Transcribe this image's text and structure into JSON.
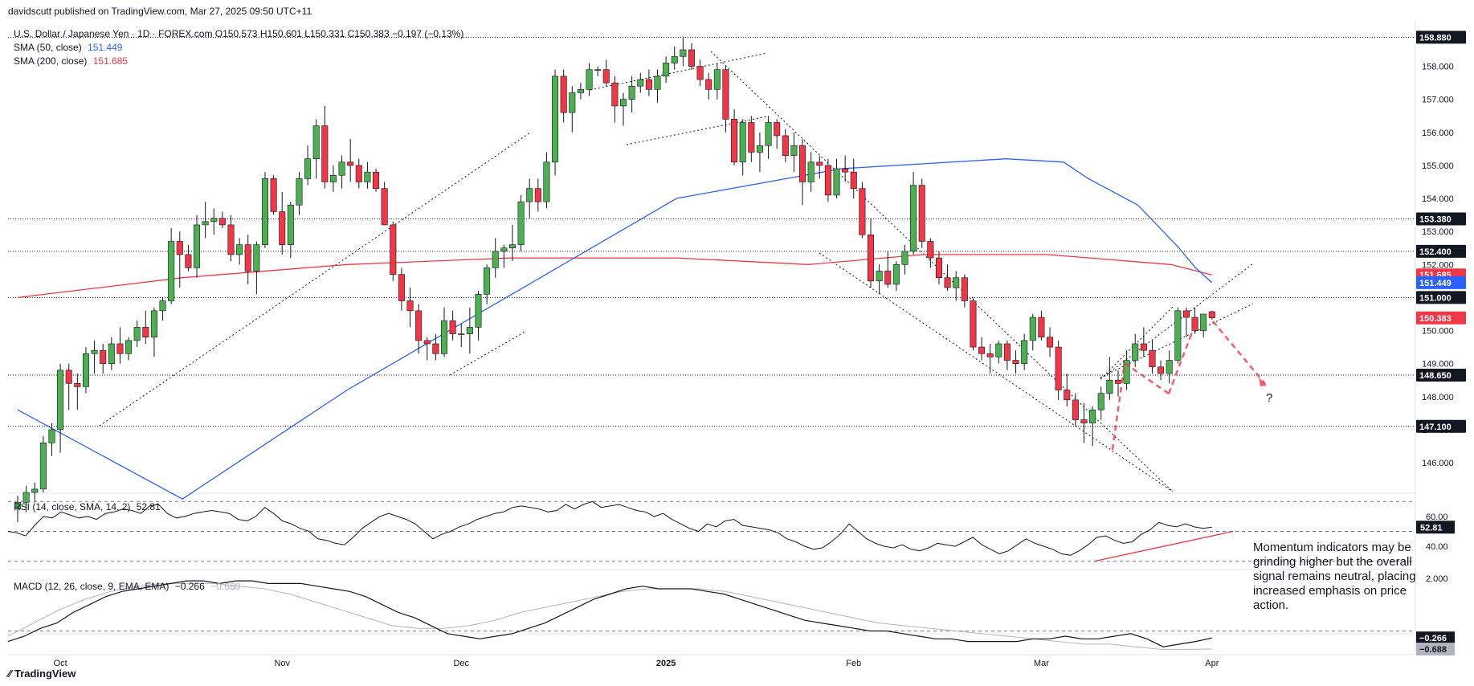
{
  "header": {
    "publisher": "davidscutt published on TradingView.com, Mar 27, 2025 09:50 UTC+11",
    "symbol_line": "U.S. Dollar / Japanese Yen · 1D · FOREX.com  O150.573  H150.601  L150.331  C150.383  −0.197 (−0.13%)",
    "sma50_label": "SMA (50, close)",
    "sma50_value": "151.449",
    "sma200_label": "SMA (200, close)",
    "sma200_value": "151.685",
    "rsi_label": "RSI (14, close, SMA, 14, 2)",
    "rsi_value": "52.81",
    "macd_label": "MACD (12, 26, close, 9, EMA, EMA)",
    "macd_value": "−0.266",
    "macd_signal_value": "−0.688"
  },
  "footer": {
    "brand": "TradingView"
  },
  "annotation": "Momentum indicators may be grinding higher but the overall signal remains neutral, placing increased emphasis on price action.",
  "question_mark": "?",
  "colors": {
    "up": "#4caf50",
    "down": "#f23645",
    "sma50": "#2962ff",
    "sma200": "#f23645",
    "rsi": "#131722",
    "macd": "#131722",
    "signal": "#b2b5be",
    "tag": "#131722"
  },
  "chart_data": {
    "type": "candlestick",
    "title": "U.S. Dollar / Japanese Yen",
    "timeframe": "1D",
    "x_labels": [
      "Oct",
      "Nov",
      "Dec",
      "2025",
      "Feb",
      "Mar",
      "Apr"
    ],
    "y_ticks": [
      146,
      147,
      148,
      149,
      150,
      151,
      152,
      153,
      154,
      155,
      156,
      157,
      158
    ],
    "ylim": [
      145.1,
      159.4
    ],
    "horizontal_levels": [
      158.88,
      153.38,
      152.4,
      151.0,
      148.65,
      147.1
    ],
    "price_tags": [
      {
        "label": "158.880",
        "value": 158.88,
        "color": "#131722"
      },
      {
        "label": "153.380",
        "value": 153.38,
        "color": "#131722"
      },
      {
        "label": "152.400",
        "value": 152.4,
        "color": "#131722"
      },
      {
        "label": "151.685",
        "value": 151.685,
        "color": "#f23645"
      },
      {
        "label": "151.449",
        "value": 151.449,
        "color": "#2962ff"
      },
      {
        "label": "151.000",
        "value": 151.0,
        "color": "#131722"
      },
      {
        "label": "150.383",
        "value": 150.383,
        "color": "#f23645"
      },
      {
        "label": "148.650",
        "value": 148.65,
        "color": "#131722"
      },
      {
        "label": "147.100",
        "value": 147.1,
        "color": "#131722"
      }
    ],
    "candles": [
      [
        144.6,
        145.0,
        144.2,
        144.8
      ],
      [
        144.8,
        145.3,
        144.5,
        145.1
      ],
      [
        145.1,
        145.4,
        144.8,
        145.2
      ],
      [
        145.2,
        146.8,
        145.1,
        146.6
      ],
      [
        146.6,
        147.2,
        146.2,
        147.0
      ],
      [
        147.0,
        149.0,
        146.3,
        148.8
      ],
      [
        148.8,
        149.0,
        147.6,
        148.4
      ],
      [
        148.4,
        148.7,
        147.6,
        148.3
      ],
      [
        148.3,
        149.5,
        148.1,
        149.3
      ],
      [
        149.3,
        149.7,
        148.7,
        149.4
      ],
      [
        149.4,
        149.6,
        148.7,
        149.0
      ],
      [
        149.0,
        149.8,
        148.8,
        149.6
      ],
      [
        149.6,
        150.1,
        149.0,
        149.3
      ],
      [
        149.3,
        149.8,
        149.1,
        149.7
      ],
      [
        149.7,
        150.3,
        149.5,
        150.1
      ],
      [
        150.1,
        150.6,
        149.6,
        149.8
      ],
      [
        149.8,
        150.7,
        149.2,
        150.6
      ],
      [
        150.6,
        151.0,
        150.3,
        150.9
      ],
      [
        150.9,
        153.1,
        150.8,
        152.7
      ],
      [
        152.7,
        153.0,
        151.3,
        152.3
      ],
      [
        152.3,
        152.6,
        151.8,
        151.9
      ],
      [
        151.9,
        153.5,
        151.6,
        153.2
      ],
      [
        153.2,
        153.9,
        152.8,
        153.3
      ],
      [
        153.3,
        153.7,
        152.9,
        153.4
      ],
      [
        153.4,
        153.6,
        153.1,
        153.2
      ],
      [
        153.2,
        153.5,
        152.1,
        152.3
      ],
      [
        152.3,
        152.8,
        152.0,
        152.6
      ],
      [
        152.6,
        152.9,
        151.4,
        151.8
      ],
      [
        151.8,
        152.7,
        151.1,
        152.6
      ],
      [
        152.6,
        154.8,
        152.5,
        154.6
      ],
      [
        154.6,
        154.7,
        153.5,
        153.6
      ],
      [
        153.6,
        154.2,
        152.3,
        152.6
      ],
      [
        152.6,
        153.9,
        152.2,
        153.8
      ],
      [
        153.8,
        154.8,
        153.5,
        154.6
      ],
      [
        154.6,
        155.6,
        154.4,
        155.2
      ],
      [
        155.2,
        156.4,
        154.6,
        156.2
      ],
      [
        156.2,
        156.8,
        154.3,
        154.5
      ],
      [
        154.5,
        155.0,
        154.2,
        154.7
      ],
      [
        154.7,
        155.3,
        154.3,
        155.1
      ],
      [
        155.1,
        155.8,
        154.5,
        155.0
      ],
      [
        155.0,
        155.2,
        154.3,
        154.5
      ],
      [
        154.5,
        155.1,
        154.3,
        154.8
      ],
      [
        154.8,
        154.9,
        154.2,
        154.3
      ],
      [
        154.3,
        154.5,
        153.2,
        153.2
      ],
      [
        153.2,
        153.3,
        151.5,
        151.7
      ],
      [
        151.7,
        151.9,
        150.6,
        150.9
      ],
      [
        150.9,
        151.3,
        150.1,
        150.6
      ],
      [
        150.6,
        150.8,
        149.3,
        149.7
      ],
      [
        149.7,
        149.8,
        149.1,
        149.6
      ],
      [
        149.6,
        149.9,
        149.1,
        149.3
      ],
      [
        149.3,
        150.7,
        149.2,
        150.3
      ],
      [
        150.3,
        150.6,
        149.7,
        149.9
      ],
      [
        149.9,
        150.2,
        149.5,
        149.9
      ],
      [
        149.9,
        150.7,
        149.3,
        150.1
      ],
      [
        150.1,
        151.2,
        149.7,
        151.1
      ],
      [
        151.1,
        152.0,
        150.8,
        151.9
      ],
      [
        151.9,
        152.8,
        151.6,
        152.4
      ],
      [
        152.4,
        152.6,
        151.9,
        152.5
      ],
      [
        152.5,
        153.2,
        152.1,
        152.6
      ],
      [
        152.6,
        154.1,
        152.4,
        153.9
      ],
      [
        153.9,
        154.6,
        153.4,
        154.3
      ],
      [
        154.3,
        154.6,
        153.6,
        153.9
      ],
      [
        153.9,
        155.4,
        153.7,
        155.1
      ],
      [
        155.1,
        157.9,
        154.7,
        157.7
      ],
      [
        157.7,
        157.9,
        156.3,
        156.6
      ],
      [
        156.6,
        157.4,
        156.0,
        157.2
      ],
      [
        157.2,
        157.5,
        157.0,
        157.3
      ],
      [
        157.3,
        158.1,
        157.1,
        157.9
      ],
      [
        157.9,
        158.0,
        157.7,
        157.9
      ],
      [
        157.9,
        158.2,
        157.4,
        157.5
      ],
      [
        157.5,
        157.7,
        156.3,
        156.8
      ],
      [
        156.8,
        157.2,
        156.2,
        157.0
      ],
      [
        157.0,
        157.7,
        156.6,
        157.4
      ],
      [
        157.4,
        157.8,
        157.2,
        157.6
      ],
      [
        157.6,
        157.9,
        157.1,
        157.3
      ],
      [
        157.3,
        157.9,
        156.9,
        157.7
      ],
      [
        157.7,
        158.3,
        157.5,
        158.1
      ],
      [
        158.1,
        158.6,
        157.9,
        158.3
      ],
      [
        158.3,
        158.9,
        158.0,
        158.5
      ],
      [
        158.5,
        158.7,
        157.9,
        158.0
      ],
      [
        158.0,
        158.2,
        157.4,
        157.6
      ],
      [
        157.6,
        157.8,
        157.0,
        157.3
      ],
      [
        157.3,
        158.1,
        157.0,
        157.9
      ],
      [
        157.9,
        158.0,
        156.0,
        156.4
      ],
      [
        156.4,
        156.7,
        155.0,
        155.1
      ],
      [
        155.1,
        156.4,
        154.7,
        156.3
      ],
      [
        156.3,
        156.5,
        155.1,
        155.4
      ],
      [
        155.4,
        156.0,
        154.8,
        155.6
      ],
      [
        155.6,
        156.5,
        155.2,
        156.3
      ],
      [
        156.3,
        156.4,
        155.5,
        155.9
      ],
      [
        155.9,
        156.1,
        155.1,
        155.3
      ],
      [
        155.3,
        156.0,
        154.8,
        155.6
      ],
      [
        155.6,
        155.8,
        153.8,
        154.5
      ],
      [
        154.5,
        155.4,
        154.2,
        155.1
      ],
      [
        155.1,
        155.3,
        154.6,
        155.0
      ],
      [
        155.0,
        155.2,
        153.9,
        154.1
      ],
      [
        154.1,
        155.2,
        154.0,
        154.9
      ],
      [
        154.9,
        155.3,
        154.5,
        154.8
      ],
      [
        154.8,
        155.2,
        154.0,
        154.3
      ],
      [
        154.3,
        154.5,
        152.8,
        152.9
      ],
      [
        152.9,
        153.4,
        151.3,
        151.5
      ],
      [
        151.5,
        152.0,
        151.1,
        151.8
      ],
      [
        151.8,
        152.4,
        151.3,
        151.4
      ],
      [
        151.4,
        152.1,
        151.2,
        152.0
      ],
      [
        152.0,
        152.6,
        151.7,
        152.4
      ],
      [
        152.4,
        154.8,
        152.3,
        154.4
      ],
      [
        154.4,
        154.6,
        152.5,
        152.7
      ],
      [
        152.7,
        152.8,
        151.9,
        152.2
      ],
      [
        152.2,
        152.4,
        151.4,
        151.6
      ],
      [
        151.6,
        152.0,
        151.2,
        151.3
      ],
      [
        151.3,
        151.8,
        150.9,
        151.6
      ],
      [
        151.6,
        151.7,
        150.7,
        150.9
      ],
      [
        150.9,
        151.0,
        149.4,
        149.5
      ],
      [
        149.5,
        149.8,
        149.1,
        149.3
      ],
      [
        149.3,
        149.6,
        148.7,
        149.2
      ],
      [
        149.2,
        149.7,
        149.0,
        149.6
      ],
      [
        149.6,
        149.7,
        148.8,
        149.1
      ],
      [
        149.1,
        149.4,
        148.7,
        149.0
      ],
      [
        149.0,
        149.9,
        148.8,
        149.7
      ],
      [
        149.7,
        150.5,
        149.4,
        150.4
      ],
      [
        150.4,
        150.6,
        149.7,
        149.8
      ],
      [
        149.8,
        150.1,
        149.2,
        149.5
      ],
      [
        149.5,
        149.7,
        147.9,
        148.2
      ],
      [
        148.2,
        148.7,
        147.7,
        147.9
      ],
      [
        147.9,
        148.1,
        147.1,
        147.3
      ],
      [
        147.3,
        147.8,
        146.6,
        147.2
      ],
      [
        147.2,
        147.7,
        146.5,
        147.6
      ],
      [
        147.6,
        148.3,
        147.3,
        148.1
      ],
      [
        148.1,
        149.2,
        147.9,
        148.5
      ],
      [
        148.5,
        148.8,
        148.0,
        148.4
      ],
      [
        148.4,
        149.4,
        148.2,
        149.1
      ],
      [
        149.1,
        149.9,
        148.9,
        149.6
      ],
      [
        149.6,
        150.1,
        149.2,
        149.4
      ],
      [
        149.4,
        149.7,
        148.7,
        148.9
      ],
      [
        148.9,
        149.1,
        148.5,
        148.7
      ],
      [
        148.7,
        149.4,
        148.4,
        149.1
      ],
      [
        149.1,
        150.7,
        149.0,
        150.6
      ],
      [
        150.6,
        150.7,
        149.8,
        150.4
      ],
      [
        150.4,
        150.7,
        149.9,
        150.0
      ],
      [
        150.0,
        150.5,
        149.8,
        150.5
      ],
      [
        150.573,
        150.601,
        150.331,
        150.383
      ]
    ],
    "sma50": [
      [
        0,
        147.6
      ],
      [
        20,
        144.9
      ],
      [
        40,
        148.2
      ],
      [
        60,
        151.1
      ],
      [
        80,
        154.0
      ],
      [
        100,
        154.9
      ],
      [
        120,
        155.2
      ],
      [
        127,
        155.1
      ],
      [
        130,
        154.6
      ],
      [
        136,
        153.8
      ],
      [
        141,
        152.5
      ],
      [
        143,
        151.9
      ],
      [
        145,
        151.449
      ]
    ],
    "sma200": [
      [
        0,
        151.0
      ],
      [
        20,
        151.6
      ],
      [
        40,
        152.0
      ],
      [
        60,
        152.2
      ],
      [
        80,
        152.2
      ],
      [
        96,
        152.0
      ],
      [
        110,
        152.3
      ],
      [
        125,
        152.3
      ],
      [
        140,
        152.0
      ],
      [
        145,
        151.685
      ]
    ],
    "rsi": {
      "ticks": [
        40.0,
        60.0
      ],
      "ylim": [
        25,
        75
      ],
      "last": 52.81,
      "values": [
        50,
        49,
        47,
        54,
        60,
        59,
        63,
        61,
        59,
        60,
        58,
        62,
        63,
        65,
        64,
        62,
        67,
        68,
        62,
        59,
        60,
        62,
        63,
        64,
        63,
        62,
        58,
        57,
        60,
        66,
        62,
        57,
        55,
        52,
        50,
        45,
        44,
        42,
        41,
        46,
        52,
        56,
        60,
        62,
        60,
        58,
        55,
        50,
        45,
        48,
        50,
        53,
        55,
        58,
        60,
        62,
        63,
        66,
        67,
        66,
        65,
        63,
        64,
        68,
        65,
        68,
        70,
        66,
        67,
        68,
        66,
        64,
        63,
        60,
        62,
        58,
        55,
        52,
        50,
        55,
        53,
        57,
        58,
        54,
        53,
        52,
        51,
        49,
        45,
        43,
        40,
        38,
        39,
        43,
        48,
        55,
        50,
        45,
        42,
        40,
        39,
        41,
        38,
        37,
        39,
        42,
        41,
        40,
        43,
        46,
        41,
        38,
        35,
        37,
        41,
        45,
        42,
        40,
        38,
        35,
        34,
        37,
        41,
        46,
        47,
        44,
        42,
        43,
        48,
        51,
        56,
        54,
        53,
        55,
        53,
        52,
        52.81
      ]
    },
    "macd": {
      "ticks": [
        2.0
      ],
      "ylim": [
        -0.9,
        2.3
      ],
      "last": -0.266,
      "signal_last": -0.688,
      "values": [
        -0.4,
        -0.2,
        0.1,
        0.3,
        0.7,
        1.0,
        1.3,
        1.5,
        1.6,
        1.7,
        1.8,
        1.9,
        1.9,
        1.8,
        1.9,
        1.9,
        1.8,
        1.8,
        1.8,
        1.7,
        1.6,
        1.5,
        1.3,
        1.0,
        0.7,
        0.5,
        0.2,
        -0.1,
        -0.2,
        -0.3,
        -0.2,
        -0.1,
        0.1,
        0.3,
        0.6,
        0.9,
        1.2,
        1.4,
        1.6,
        1.7,
        1.6,
        1.6,
        1.6,
        1.5,
        1.4,
        1.2,
        1.0,
        0.8,
        0.6,
        0.4,
        0.3,
        0.2,
        0.1,
        0.0,
        0.0,
        -0.1,
        -0.2,
        -0.3,
        -0.3,
        -0.4,
        -0.4,
        -0.4,
        -0.4,
        -0.3,
        -0.3,
        -0.2,
        -0.3,
        -0.3,
        -0.2,
        -0.1,
        -0.3,
        -0.6,
        -0.5,
        -0.4,
        -0.266
      ],
      "signal": [
        -0.2,
        0.3,
        0.8,
        1.2,
        1.5,
        1.7,
        1.8,
        1.8,
        1.8,
        1.7,
        1.6,
        1.4,
        1.1,
        0.8,
        0.5,
        0.2,
        0.1,
        0.1,
        0.2,
        0.4,
        0.7,
        0.9,
        1.1,
        1.3,
        1.5,
        1.6,
        1.6,
        1.6,
        1.5,
        1.3,
        1.1,
        0.9,
        0.7,
        0.5,
        0.3,
        0.2,
        0.1,
        0.0,
        -0.1,
        -0.2,
        -0.3,
        -0.4,
        -0.5,
        -0.5,
        -0.6,
        -0.7,
        -0.7,
        -0.688
      ]
    }
  }
}
